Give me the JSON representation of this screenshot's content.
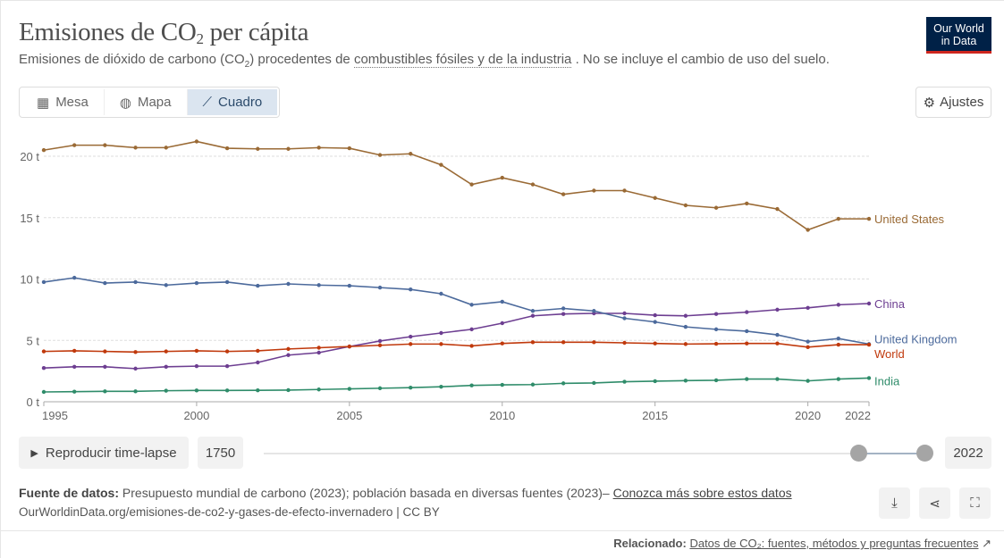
{
  "header": {
    "title": "Emisiones de CO",
    "title_sub": "2",
    "title_end": " per cápita",
    "subtitle_a": "Emisiones de dióxido de carbono (CO",
    "subtitle_sub": "2",
    "subtitle_b": ") procedentes de ",
    "subtitle_link": "combustibles fósiles y de la industria",
    "subtitle_c": " . No se incluye el cambio de uso del suelo.",
    "logo_line1": "Our World",
    "logo_line2": "in Data"
  },
  "tabs": [
    {
      "label": "Mesa",
      "icon": "table-icon"
    },
    {
      "label": "Mapa",
      "icon": "globe-icon"
    },
    {
      "label": "Cuadro",
      "icon": "line-chart-icon",
      "active": true
    }
  ],
  "settings_label": "Ajustes",
  "timeline": {
    "play_label": "Reproducir time-lapse",
    "start": "1750",
    "end": "2022",
    "selected_range": [
      1995,
      2022
    ]
  },
  "footer": {
    "source_label": "Fuente de datos:",
    "source_text": " Presupuesto mundial de carbono (2023); población basada en diversas fuentes (2023)– ",
    "learn_more": "Conozca más sobre estos datos",
    "url": "OurWorldinData.org/emisiones-de-co2-y-gases-de-efecto-invernadero | CC BY",
    "related_label": "Relacionado:",
    "related_link": "Datos de CO₂: fuentes, métodos y preguntas frecuentes"
  },
  "chart_data": {
    "type": "line",
    "title": "Emisiones de CO₂ per cápita",
    "xlabel": "",
    "ylabel": "",
    "xlim": [
      1995,
      2022
    ],
    "ylim": [
      0,
      21.5
    ],
    "x_ticks": [
      "1995",
      "2000",
      "2005",
      "2010",
      "2015",
      "2020",
      "2022"
    ],
    "y_ticks": [
      {
        "v": 0,
        "label": "0 t"
      },
      {
        "v": 5,
        "label": "5 t"
      },
      {
        "v": 10,
        "label": "10 t"
      },
      {
        "v": 15,
        "label": "15 t"
      },
      {
        "v": 20,
        "label": "20 t"
      }
    ],
    "grid": "horizontal-dotted",
    "legend": "inline-right",
    "x": [
      1995,
      1996,
      1997,
      1998,
      1999,
      2000,
      2001,
      2002,
      2003,
      2004,
      2005,
      2006,
      2007,
      2008,
      2009,
      2010,
      2011,
      2012,
      2013,
      2014,
      2015,
      2016,
      2017,
      2018,
      2019,
      2020,
      2021,
      2022
    ],
    "series": [
      {
        "name": "United States",
        "color": "#9a6a35",
        "values": [
          20.5,
          20.9,
          20.9,
          20.7,
          20.7,
          21.2,
          20.65,
          20.6,
          20.6,
          20.7,
          20.65,
          20.1,
          20.2,
          19.3,
          17.7,
          18.25,
          17.7,
          16.9,
          17.2,
          17.2,
          16.6,
          16.0,
          15.8,
          16.15,
          15.7,
          14.0,
          14.9,
          14.9
        ]
      },
      {
        "name": "China",
        "color": "#6d3e91",
        "values": [
          2.75,
          2.85,
          2.85,
          2.7,
          2.85,
          2.9,
          2.9,
          3.2,
          3.8,
          4.0,
          4.5,
          4.95,
          5.3,
          5.6,
          5.9,
          6.4,
          7.0,
          7.15,
          7.2,
          7.2,
          7.05,
          7.0,
          7.15,
          7.3,
          7.5,
          7.65,
          7.9,
          8.0
        ]
      },
      {
        "name": "United Kingdom",
        "color": "#4c6a9c",
        "values": [
          9.75,
          10.1,
          9.67,
          9.75,
          9.5,
          9.67,
          9.75,
          9.45,
          9.6,
          9.5,
          9.45,
          9.3,
          9.15,
          8.8,
          7.9,
          8.15,
          7.4,
          7.6,
          7.4,
          6.8,
          6.5,
          6.1,
          5.9,
          5.75,
          5.45,
          4.9,
          5.15,
          4.7
        ]
      },
      {
        "name": "World",
        "color": "#c0390c",
        "values": [
          4.1,
          4.15,
          4.1,
          4.05,
          4.1,
          4.15,
          4.1,
          4.15,
          4.3,
          4.4,
          4.5,
          4.6,
          4.7,
          4.7,
          4.55,
          4.75,
          4.85,
          4.85,
          4.85,
          4.8,
          4.75,
          4.7,
          4.72,
          4.75,
          4.75,
          4.45,
          4.65,
          4.65
        ]
      },
      {
        "name": "India",
        "color": "#2f8c6a",
        "values": [
          0.8,
          0.82,
          0.85,
          0.85,
          0.9,
          0.92,
          0.92,
          0.93,
          0.95,
          1.0,
          1.05,
          1.1,
          1.15,
          1.22,
          1.33,
          1.38,
          1.4,
          1.5,
          1.53,
          1.63,
          1.68,
          1.72,
          1.75,
          1.85,
          1.85,
          1.7,
          1.85,
          1.93
        ]
      }
    ]
  }
}
